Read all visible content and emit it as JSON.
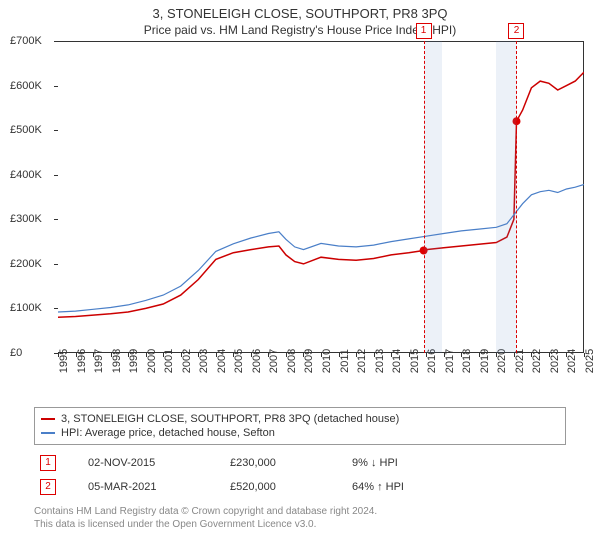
{
  "title": "3, STONELEIGH CLOSE, SOUTHPORT, PR8 3PQ",
  "subtitle": "Price paid vs. HM Land Registry's House Price Index (HPI)",
  "chart": {
    "type": "line",
    "background_color": "#ffffff",
    "axis_color": "#333333",
    "ylim": [
      0,
      700000
    ],
    "ytick_step": 100000,
    "yaxis_labels": [
      "£0",
      "£100K",
      "£200K",
      "£300K",
      "£400K",
      "£500K",
      "£600K",
      "£700K"
    ],
    "xlim": [
      1995,
      2025
    ],
    "xaxis_labels": [
      "1995",
      "1996",
      "1997",
      "1998",
      "1999",
      "2000",
      "2001",
      "2002",
      "2003",
      "2004",
      "2005",
      "2006",
      "2007",
      "2008",
      "2009",
      "2010",
      "2011",
      "2012",
      "2013",
      "2014",
      "2015",
      "2016",
      "2017",
      "2018",
      "2019",
      "2020",
      "2021",
      "2022",
      "2023",
      "2024",
      "2025"
    ],
    "shaded_ranges": [
      [
        2015.85,
        2016.9
      ],
      [
        2020.0,
        2021.2
      ]
    ],
    "vlines": [
      2015.85,
      2021.15
    ],
    "series": [
      {
        "name": "property",
        "color": "#cc0000",
        "width": 1.5,
        "data": [
          [
            1995,
            80000
          ],
          [
            1996,
            82000
          ],
          [
            1997,
            85000
          ],
          [
            1998,
            88000
          ],
          [
            1999,
            92000
          ],
          [
            2000,
            100000
          ],
          [
            2001,
            110000
          ],
          [
            2002,
            130000
          ],
          [
            2003,
            165000
          ],
          [
            2004,
            210000
          ],
          [
            2005,
            225000
          ],
          [
            2006,
            232000
          ],
          [
            2007,
            238000
          ],
          [
            2007.6,
            240000
          ],
          [
            2008,
            220000
          ],
          [
            2008.5,
            205000
          ],
          [
            2009,
            200000
          ],
          [
            2010,
            215000
          ],
          [
            2011,
            210000
          ],
          [
            2012,
            208000
          ],
          [
            2013,
            212000
          ],
          [
            2014,
            220000
          ],
          [
            2015,
            225000
          ],
          [
            2015.85,
            230000
          ],
          [
            2016,
            232000
          ],
          [
            2017,
            236000
          ],
          [
            2018,
            240000
          ],
          [
            2019,
            244000
          ],
          [
            2020,
            248000
          ],
          [
            2020.6,
            260000
          ],
          [
            2021,
            300000
          ],
          [
            2021.15,
            520000
          ],
          [
            2021.5,
            545000
          ],
          [
            2022,
            595000
          ],
          [
            2022.5,
            610000
          ],
          [
            2023,
            605000
          ],
          [
            2023.5,
            590000
          ],
          [
            2024,
            600000
          ],
          [
            2024.5,
            610000
          ],
          [
            2025,
            630000
          ]
        ]
      },
      {
        "name": "hpi",
        "color": "#4a7fc8",
        "width": 1.2,
        "data": [
          [
            1995,
            92000
          ],
          [
            1996,
            94000
          ],
          [
            1997,
            98000
          ],
          [
            1998,
            102000
          ],
          [
            1999,
            108000
          ],
          [
            2000,
            118000
          ],
          [
            2001,
            130000
          ],
          [
            2002,
            150000
          ],
          [
            2003,
            185000
          ],
          [
            2004,
            228000
          ],
          [
            2005,
            245000
          ],
          [
            2006,
            258000
          ],
          [
            2007,
            268000
          ],
          [
            2007.6,
            272000
          ],
          [
            2008,
            255000
          ],
          [
            2008.5,
            238000
          ],
          [
            2009,
            232000
          ],
          [
            2010,
            246000
          ],
          [
            2011,
            240000
          ],
          [
            2012,
            238000
          ],
          [
            2013,
            242000
          ],
          [
            2014,
            250000
          ],
          [
            2015,
            256000
          ],
          [
            2016,
            262000
          ],
          [
            2017,
            268000
          ],
          [
            2018,
            274000
          ],
          [
            2019,
            278000
          ],
          [
            2020,
            282000
          ],
          [
            2020.6,
            290000
          ],
          [
            2021,
            310000
          ],
          [
            2021.5,
            335000
          ],
          [
            2022,
            355000
          ],
          [
            2022.5,
            362000
          ],
          [
            2023,
            365000
          ],
          [
            2023.5,
            360000
          ],
          [
            2024,
            368000
          ],
          [
            2024.5,
            372000
          ],
          [
            2025,
            378000
          ]
        ]
      }
    ],
    "sale_points": [
      {
        "x": 2015.85,
        "y": 230000
      },
      {
        "x": 2021.15,
        "y": 520000
      }
    ],
    "marker_boxes": [
      "1",
      "2"
    ],
    "marker_box_border": "#cc0000",
    "label_fontsize": 11
  },
  "legend": {
    "items": [
      {
        "label": "3, STONELEIGH CLOSE, SOUTHPORT, PR8 3PQ (detached house)",
        "color": "#cc0000"
      },
      {
        "label": "HPI: Average price, detached house, Sefton",
        "color": "#4a7fc8"
      }
    ]
  },
  "sales": [
    {
      "num": "1",
      "date": "02-NOV-2015",
      "price": "£230,000",
      "delta": "9% ↓ HPI"
    },
    {
      "num": "2",
      "date": "05-MAR-2021",
      "price": "£520,000",
      "delta": "64% ↑ HPI"
    }
  ],
  "footer_lines": [
    "Contains HM Land Registry data © Crown copyright and database right 2024.",
    "This data is licensed under the Open Government Licence v3.0."
  ]
}
